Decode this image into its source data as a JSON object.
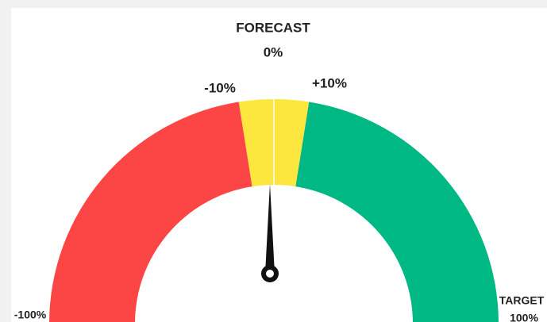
{
  "chart_data": {
    "type": "gauge",
    "title": "FORECAST",
    "annotation": "TARGET",
    "range": [
      -100,
      100
    ],
    "ticks": [
      {
        "value": -100,
        "label": "-100%"
      },
      {
        "value": -10,
        "label": "-10%"
      },
      {
        "value": 0,
        "label": "0%"
      },
      {
        "value": 10,
        "label": "+10%"
      },
      {
        "value": 100,
        "label": "100%"
      }
    ],
    "bands": [
      {
        "from": -100,
        "to": -10,
        "color": "#fc4545"
      },
      {
        "from": -10,
        "to": 10,
        "color": "#fde63e"
      },
      {
        "from": 10,
        "to": 100,
        "color": "#00b884"
      }
    ],
    "value": 0,
    "needle_color": "#111111"
  }
}
